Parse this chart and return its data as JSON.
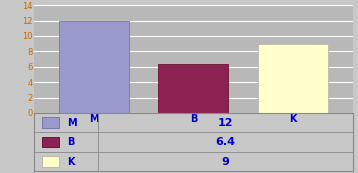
{
  "categories": [
    "M",
    "B",
    "K"
  ],
  "values": [
    12,
    6.4,
    9
  ],
  "bar_colors": [
    "#9999cc",
    "#8b2252",
    "#ffffcc"
  ],
  "bar_edge_colors": [
    "#7777aa",
    "#6b1232",
    "#bbbbaa"
  ],
  "legend_labels": [
    "M",
    "B",
    "K"
  ],
  "table_values": [
    "12",
    "6.4",
    "9"
  ],
  "ylim": [
    0,
    14
  ],
  "yticks": [
    0,
    2,
    4,
    6,
    8,
    10,
    12,
    14
  ],
  "plot_bg_color": "#b8b8b8",
  "fig_bg_color": "#ffffff",
  "outer_bg_color": "#c8c8c8",
  "grid_color": "#888888",
  "white_line_color": "#ffffff",
  "table_bg": "#ffffff",
  "font_color": "#0000cc",
  "tick_color": "#cc6600",
  "font_size": 6,
  "label_font_size": 7
}
